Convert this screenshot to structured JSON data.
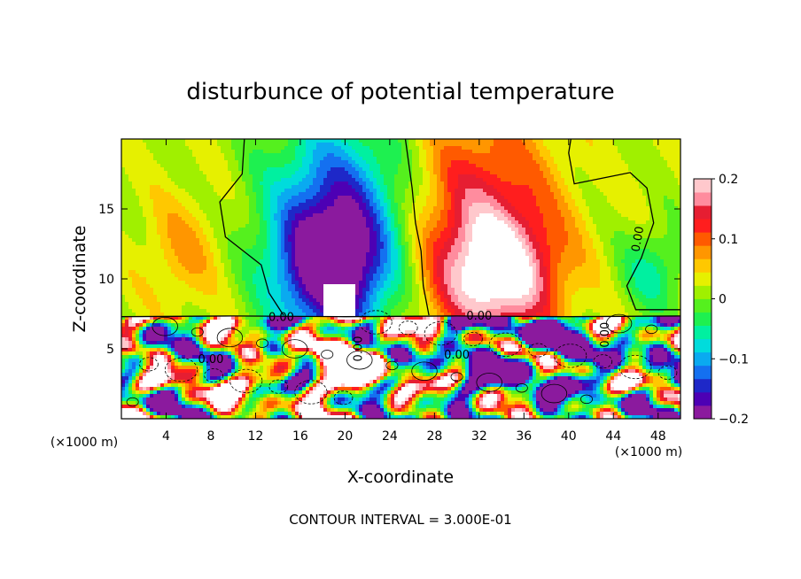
{
  "chart_data": {
    "type": "heatmap",
    "title": "disturbunce of potential temperature",
    "xlabel": "X-coordinate",
    "ylabel": "Z-coordinate",
    "x_unit_left": "(×1000 m)",
    "x_unit_right": "(×1000 m)",
    "xlim": [
      0,
      50
    ],
    "ylim": [
      0,
      20
    ],
    "xticks": [
      4,
      8,
      12,
      16,
      20,
      24,
      28,
      32,
      36,
      40,
      44,
      48
    ],
    "yticks": [
      5,
      10,
      15
    ],
    "colorbar": {
      "range": [
        -0.2,
        0.2
      ],
      "ticks": [
        {
          "value": 0.2,
          "label": "0.2"
        },
        {
          "value": 0.1,
          "label": "0.1"
        },
        {
          "value": 0,
          "label": "0"
        },
        {
          "value": -0.1,
          "label": "−0.1"
        },
        {
          "value": -0.2,
          "label": "−0.2"
        }
      ],
      "colors": [
        "#8b1a9e",
        "#4d00b4",
        "#1e28c8",
        "#1470f0",
        "#0aaaf0",
        "#00dcdc",
        "#00f0a0",
        "#1ef050",
        "#55f01e",
        "#a0f000",
        "#e6f000",
        "#ffc800",
        "#ff9600",
        "#ff5a00",
        "#ff1e1e",
        "#e61e32",
        "#ff8c9e",
        "#ffc8cc"
      ]
    },
    "contour_labels": [
      {
        "text": "0.00",
        "x": 46.5,
        "z": 12.8,
        "angle": -80
      },
      {
        "text": "0.00",
        "x": 14.3,
        "z": 7.0,
        "angle": 0
      },
      {
        "text": "0.00",
        "x": 32.0,
        "z": 7.1,
        "angle": 0
      },
      {
        "text": "0.00",
        "x": 30.0,
        "z": 4.3,
        "angle": 0
      },
      {
        "text": "0.00",
        "x": 8.0,
        "z": 4.0,
        "angle": 0
      },
      {
        "text": "0.00",
        "x": 21.5,
        "z": 5.0,
        "angle": -90
      },
      {
        "text": "0.00",
        "x": 43.6,
        "z": 6.0,
        "angle": -90
      }
    ],
    "footer": "CONTOUR INTERVAL = 3.000E-01"
  }
}
